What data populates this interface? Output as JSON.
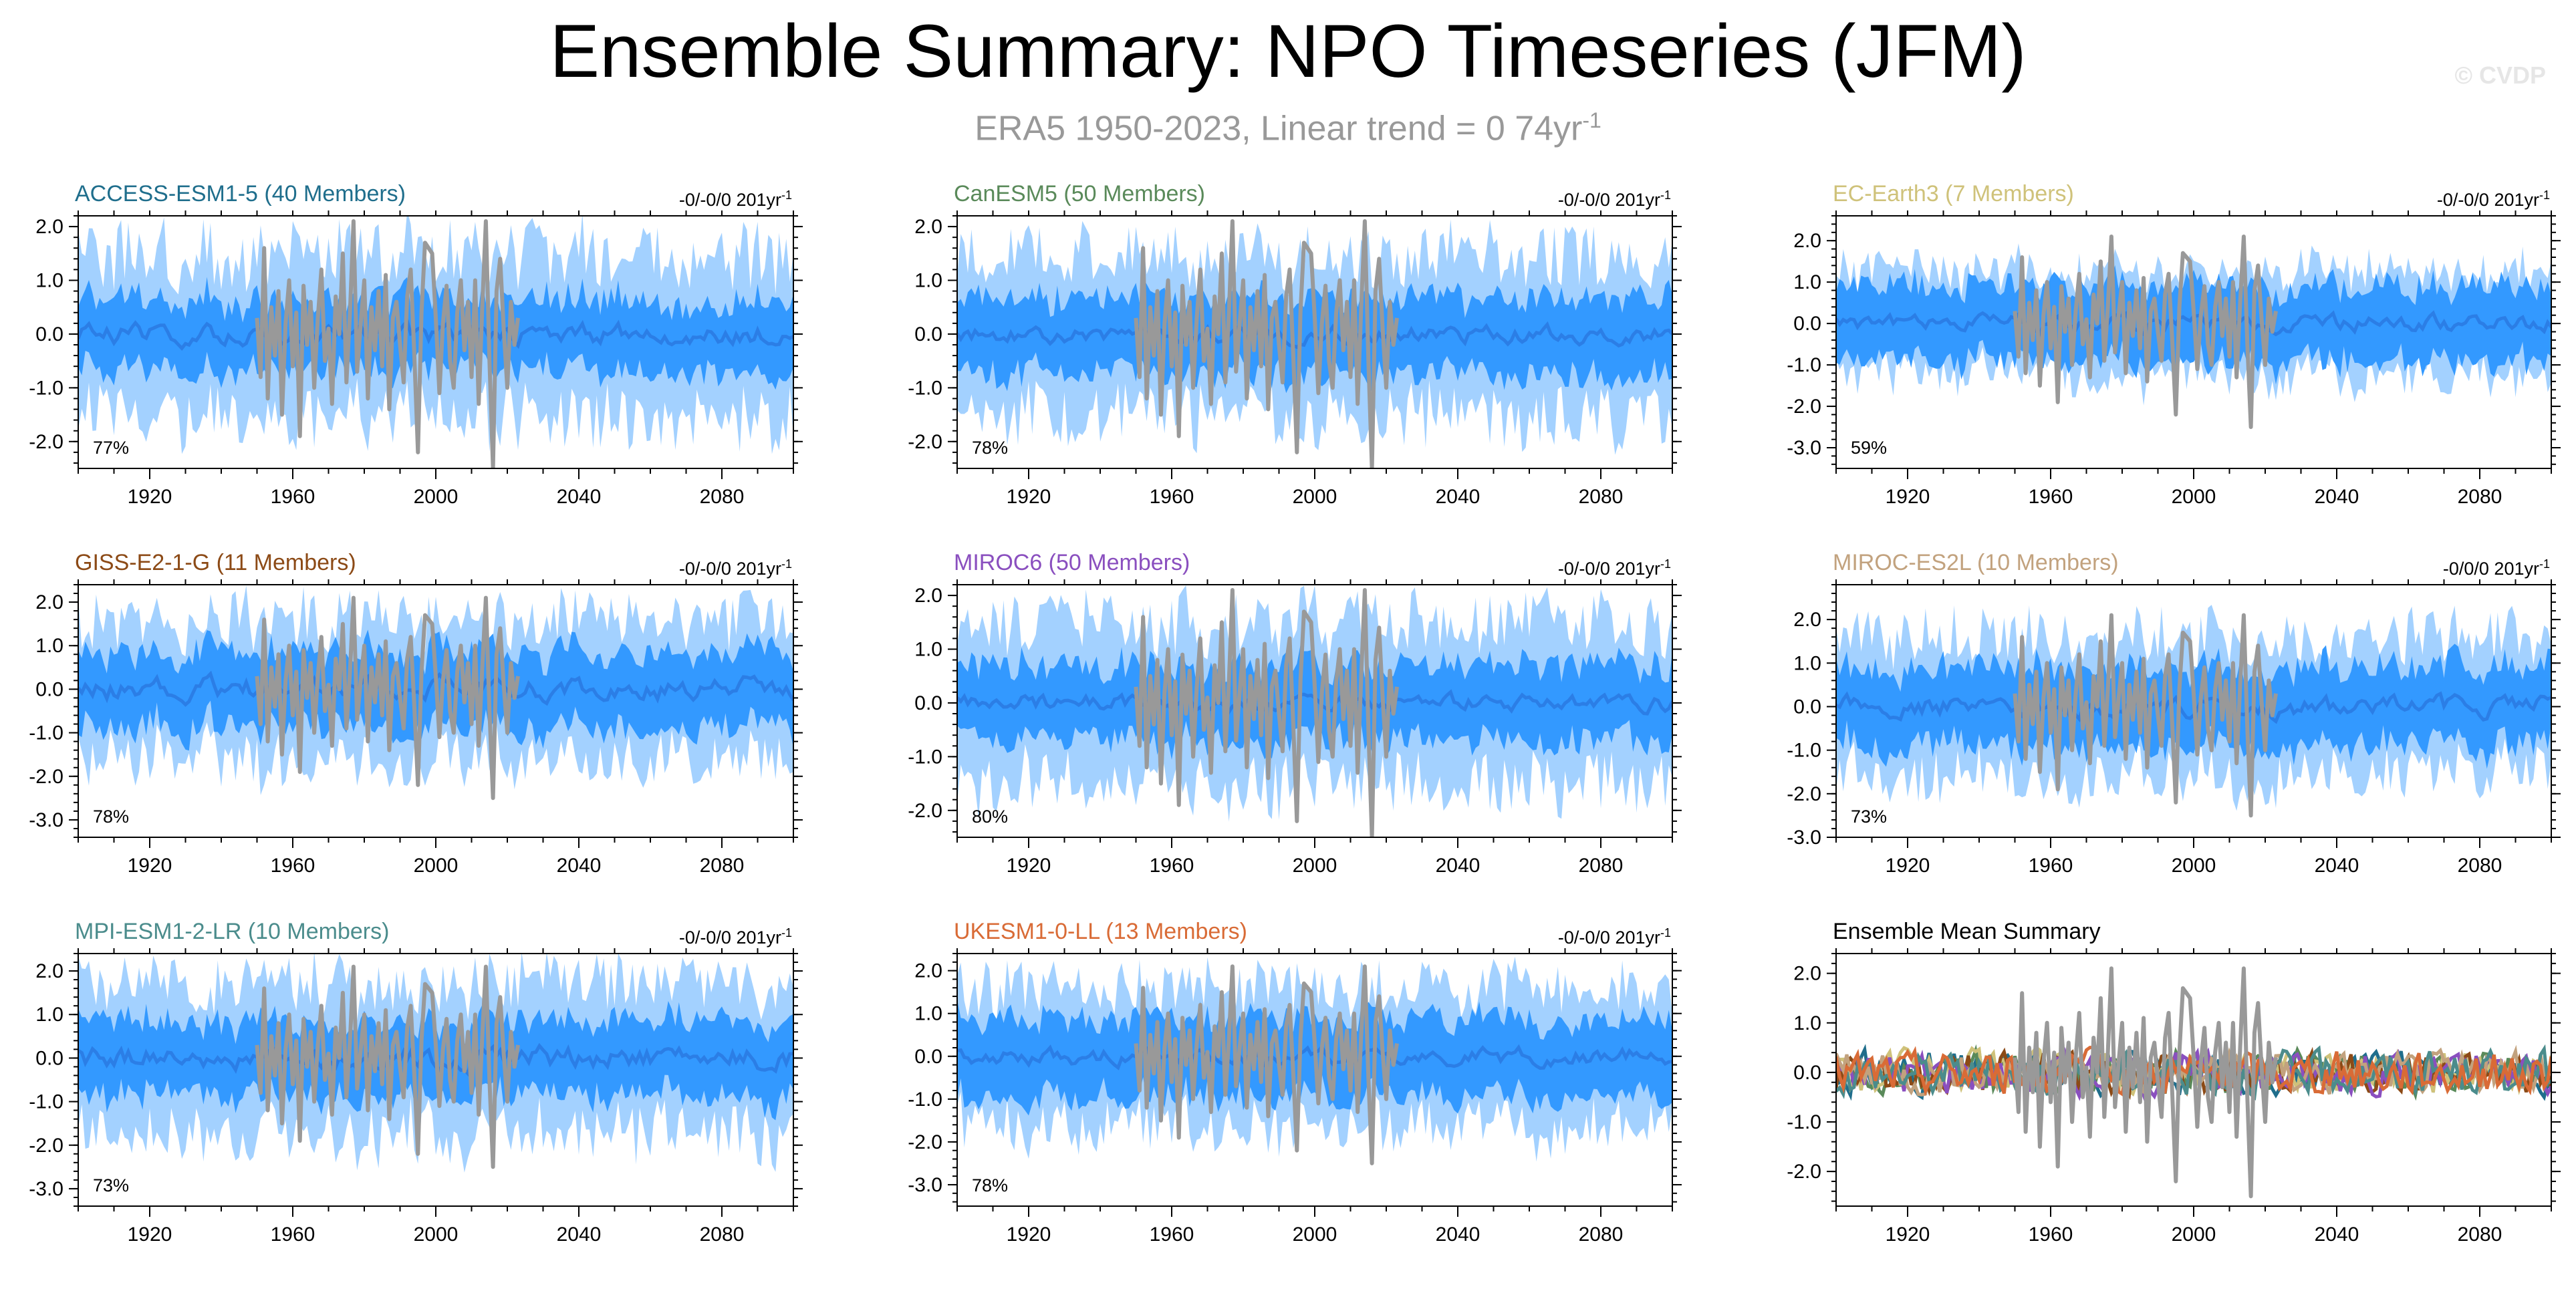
{
  "title": "Ensemble Summary: NPO Timeseries (JFM)",
  "subtitle": "ERA5 1950-2023, Linear trend = 0 74yr",
  "subtitle_unit_exponent": "-1",
  "watermark": "© CVDP",
  "colors": {
    "outer_band": "#a3d1ff",
    "inner_band": "#3399ff",
    "ensemble_mean": "#2b7ee6",
    "observation": "#999999",
    "axis": "#000000"
  },
  "chart_data": [
    {
      "type": "area",
      "title": "ACCESS-ESM1-5 (40 Members)",
      "title_color": "#1f6e8c",
      "trend_text": "-0/-0/0 201yr",
      "trend_exponent": "-1",
      "pct_label": "77%",
      "x_ticks": [
        1920,
        1960,
        2000,
        2040,
        2080
      ],
      "y_ticks": [
        2.0,
        1.0,
        0.0,
        -1.0,
        -2.0
      ],
      "y_tick_labels": [
        "2.0",
        "1.0",
        "0.0",
        "-1.0",
        "-2.0"
      ],
      "xlim": [
        1900,
        2100
      ],
      "ylim": [
        -2.5,
        2.2
      ],
      "envelope": {
        "outer": 1.5,
        "inner": 0.65,
        "mean_amp": 0.15
      },
      "seed": 3
    },
    {
      "type": "area",
      "title": "CanESM5 (50 Members)",
      "title_color": "#5a8a5a",
      "trend_text": "-0/-0/0 201yr",
      "trend_exponent": "-1",
      "pct_label": "78%",
      "x_ticks": [
        1920,
        1960,
        2000,
        2040,
        2080
      ],
      "y_ticks": [
        2.0,
        1.0,
        0.0,
        -1.0,
        -2.0
      ],
      "y_tick_labels": [
        "2.0",
        "1.0",
        "0.0",
        "-1.0",
        "-2.0"
      ],
      "xlim": [
        1900,
        2100
      ],
      "ylim": [
        -2.5,
        2.2
      ],
      "envelope": {
        "outer": 1.5,
        "inner": 0.7,
        "mean_amp": 0.12
      },
      "seed": 7
    },
    {
      "type": "area",
      "title": "EC-Earth3 (7 Members)",
      "title_color": "#cfc27a",
      "trend_text": "-0/-0/0 201yr",
      "trend_exponent": "-1",
      "pct_label": "59%",
      "x_ticks": [
        1920,
        1960,
        2000,
        2040,
        2080
      ],
      "y_ticks": [
        2.0,
        1.0,
        0.0,
        -1.0,
        -2.0,
        -3.0
      ],
      "y_tick_labels": [
        "2.0",
        "1.0",
        "0.0",
        "-1.0",
        "-2.0",
        "-3.0"
      ],
      "xlim": [
        1900,
        2100
      ],
      "ylim": [
        -3.5,
        2.6
      ],
      "envelope": {
        "outer": 1.25,
        "inner": 0.9,
        "mean_amp": 0.15
      },
      "seed": 11
    },
    {
      "type": "area",
      "title": "GISS-E2-1-G (11 Members)",
      "title_color": "#8c4a16",
      "trend_text": "-0/-0/0 201yr",
      "trend_exponent": "-1",
      "pct_label": "78%",
      "x_ticks": [
        1920,
        1960,
        2000,
        2040,
        2080
      ],
      "y_ticks": [
        2.0,
        1.0,
        0.0,
        -1.0,
        -2.0,
        -3.0
      ],
      "y_tick_labels": [
        "2.0",
        "1.0",
        "0.0",
        "-1.0",
        "-2.0",
        "-3.0"
      ],
      "xlim": [
        1900,
        2100
      ],
      "ylim": [
        -3.4,
        2.4
      ],
      "envelope": {
        "outer": 1.6,
        "inner": 0.85,
        "mean_amp": 0.2
      },
      "seed": 13
    },
    {
      "type": "area",
      "title": "MIROC6 (50 Members)",
      "title_color": "#8a4fbf",
      "trend_text": "-0/-0/0 201yr",
      "trend_exponent": "-1",
      "pct_label": "80%",
      "x_ticks": [
        1920,
        1960,
        2000,
        2040,
        2080
      ],
      "y_ticks": [
        2.0,
        1.0,
        0.0,
        -1.0,
        -2.0
      ],
      "y_tick_labels": [
        "2.0",
        "1.0",
        "0.0",
        "-1.0",
        "-2.0"
      ],
      "xlim": [
        1900,
        2100
      ],
      "ylim": [
        -2.5,
        2.2
      ],
      "envelope": {
        "outer": 1.5,
        "inner": 0.7,
        "mean_amp": 0.12
      },
      "seed": 17
    },
    {
      "type": "area",
      "title": "MIROC-ES2L (10 Members)",
      "title_color": "#c2a27e",
      "trend_text": "-0/0/0 201yr",
      "trend_exponent": "-1",
      "pct_label": "73%",
      "x_ticks": [
        1920,
        1960,
        2000,
        2040,
        2080
      ],
      "y_ticks": [
        2.0,
        1.0,
        0.0,
        -1.0,
        -2.0,
        -3.0
      ],
      "y_tick_labels": [
        "2.0",
        "1.0",
        "0.0",
        "-1.0",
        "-2.0",
        "-3.0"
      ],
      "xlim": [
        1900,
        2100
      ],
      "ylim": [
        -3.0,
        2.8
      ],
      "envelope": {
        "outer": 1.6,
        "inner": 0.9,
        "mean_amp": 0.18
      },
      "seed": 19
    },
    {
      "type": "area",
      "title": "MPI-ESM1-2-LR (10 Members)",
      "title_color": "#4b8c8c",
      "trend_text": "-0/-0/0 201yr",
      "trend_exponent": "-1",
      "pct_label": "73%",
      "x_ticks": [
        1920,
        1960,
        2000,
        2040,
        2080
      ],
      "y_ticks": [
        2.0,
        1.0,
        0.0,
        -1.0,
        -2.0,
        -3.0
      ],
      "y_tick_labels": [
        "2.0",
        "1.0",
        "0.0",
        "-1.0",
        "-2.0",
        "-3.0"
      ],
      "xlim": [
        1900,
        2100
      ],
      "ylim": [
        -3.4,
        2.4
      ],
      "envelope": {
        "outer": 1.7,
        "inner": 0.85,
        "mean_amp": 0.2
      },
      "seed": 23
    },
    {
      "type": "area",
      "title": "UKESM1-0-LL (13 Members)",
      "title_color": "#d96b36",
      "trend_text": "-0/-0/0 201yr",
      "trend_exponent": "-1",
      "pct_label": "78%",
      "x_ticks": [
        1920,
        1960,
        2000,
        2040,
        2080
      ],
      "y_ticks": [
        2.0,
        1.0,
        0.0,
        -1.0,
        -2.0,
        -3.0
      ],
      "y_tick_labels": [
        "2.0",
        "1.0",
        "0.0",
        "-1.0",
        "-2.0",
        "-3.0"
      ],
      "xlim": [
        1900,
        2100
      ],
      "ylim": [
        -3.5,
        2.4
      ],
      "envelope": {
        "outer": 1.6,
        "inner": 0.9,
        "mean_amp": 0.15
      },
      "seed": 29
    },
    {
      "type": "line",
      "title": "Ensemble Mean Summary",
      "title_color": "#000000",
      "trend_text": "",
      "trend_exponent": "",
      "pct_label": "",
      "x_ticks": [
        1920,
        1960,
        2000,
        2040,
        2080
      ],
      "y_ticks": [
        2.0,
        1.0,
        0.0,
        -1.0,
        -2.0
      ],
      "y_tick_labels": [
        "2.0",
        "1.0",
        "0.0",
        "-1.0",
        "-2.0"
      ],
      "xlim": [
        1900,
        2100
      ],
      "ylim": [
        -2.7,
        2.4
      ],
      "series_colors": [
        "#1f6e8c",
        "#5a8a5a",
        "#cfc27a",
        "#8c4a16",
        "#8a4fbf",
        "#c2a27e",
        "#4b8c8c",
        "#d96b36"
      ],
      "mean_amp": 0.35,
      "seed": 31
    }
  ],
  "observation": {
    "years": [
      1950,
      1951,
      1952,
      1953,
      1954,
      1955,
      1956,
      1957,
      1958,
      1959,
      1960,
      1961,
      1962,
      1963,
      1964,
      1965,
      1966,
      1967,
      1968,
      1969,
      1970,
      1971,
      1972,
      1973,
      1974,
      1975,
      1976,
      1977,
      1978,
      1979,
      1980,
      1981,
      1982,
      1983,
      1984,
      1985,
      1986,
      1987,
      1988,
      1989,
      1990,
      1991,
      1992,
      1993,
      1994,
      1995,
      1996,
      1997,
      1998,
      1999,
      2000,
      2001,
      2002,
      2003,
      2004,
      2005,
      2006,
      2007,
      2008,
      2009,
      2010,
      2011,
      2012,
      2013,
      2014,
      2015,
      2016,
      2017,
      2018,
      2019,
      2020,
      2021,
      2022,
      2023
    ],
    "values": [
      0.3,
      -0.8,
      1.6,
      -1.2,
      0.5,
      -0.4,
      0.8,
      -1.5,
      0.2,
      1.0,
      -0.6,
      0.4,
      -1.9,
      0.9,
      -0.2,
      0.6,
      -1.0,
      0.3,
      1.2,
      -0.5,
      0.1,
      -1.3,
      0.7,
      0.0,
      1.5,
      -0.9,
      0.4,
      2.1,
      -0.7,
      0.2,
      1.0,
      -1.2,
      0.5,
      -0.3,
      0.8,
      -0.6,
      1.1,
      -1.4,
      0.3,
      0.6,
      -0.2,
      -0.9,
      0.7,
      1.2,
      -0.4,
      -2.2,
      0.4,
      1.7,
      1.6,
      1.5,
      0.3,
      -1.1,
      0.2,
      0.9,
      -0.5,
      -1.0,
      0.4,
      1.0,
      -0.3,
      0.6,
      -0.8,
      1.0,
      -1.3,
      0.5,
      2.1,
      -0.5,
      -2.5,
      0.8,
      1.4,
      0.1,
      -1.0,
      0.6,
      -0.2,
      0.3
    ]
  }
}
